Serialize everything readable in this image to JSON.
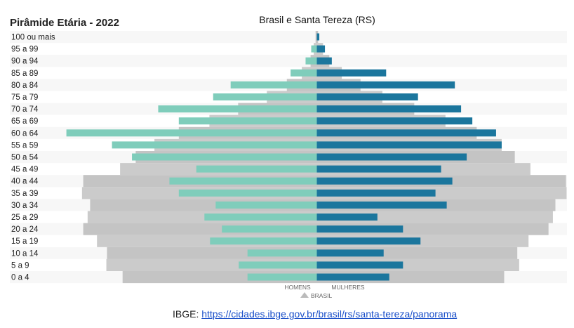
{
  "chart_data": {
    "type": "bar",
    "orientation": "horizontal-pyramid",
    "title": "Pirâmide Etária - 2022",
    "subtitle": "Brasil e Santa Tereza (RS)",
    "unit": "% of population (estimated; no axis printed)",
    "categories": [
      "100 ou mais",
      "95 a 99",
      "90 a 94",
      "85 a 89",
      "80 a 84",
      "75 a 79",
      "70 a 74",
      "65 a 69",
      "60 a 64",
      "55 a 59",
      "50 a 54",
      "45 a 49",
      "40 a 44",
      "35 a 39",
      "30 a 34",
      "25 a 29",
      "20 a 24",
      "15 a 19",
      "10 a 14",
      "5 a 9",
      "0 a 4"
    ],
    "series": [
      {
        "name": "HOMENS",
        "side": "left",
        "color": "#7fcdbb",
        "values": [
          0.0,
          0.09,
          0.18,
          0.42,
          1.38,
          1.66,
          2.54,
          2.21,
          4.01,
          3.28,
          2.96,
          1.93,
          2.36,
          2.21,
          1.62,
          1.8,
          1.52,
          1.71,
          1.11,
          1.25,
          1.11
        ]
      },
      {
        "name": "MULHERES",
        "side": "right",
        "color": "#1b769d",
        "values": [
          0.04,
          0.13,
          0.24,
          1.11,
          2.21,
          1.62,
          2.31,
          2.49,
          2.87,
          2.96,
          2.4,
          1.99,
          2.17,
          1.9,
          2.08,
          0.97,
          1.38,
          1.66,
          1.07,
          1.38,
          1.16
        ]
      },
      {
        "name": "BRASIL",
        "role": "reference",
        "color": "#c8c8c8",
        "men": [
          0.02,
          0.05,
          0.1,
          0.24,
          0.48,
          0.8,
          1.26,
          1.72,
          2.21,
          2.6,
          2.9,
          3.15,
          3.74,
          3.76,
          3.63,
          3.67,
          3.74,
          3.52,
          3.36,
          3.37,
          3.11
        ],
        "women": [
          0.02,
          0.1,
          0.2,
          0.4,
          0.7,
          1.05,
          1.56,
          2.06,
          2.56,
          2.96,
          3.17,
          3.42,
          3.99,
          4.0,
          3.82,
          3.78,
          3.71,
          3.39,
          3.21,
          3.24,
          3.0
        ]
      }
    ],
    "legend": {
      "men_label": "HOMENS",
      "women_label": "MULHERES",
      "reference_label": "BRASIL",
      "placement": "bottom-center"
    },
    "grid": false
  },
  "source": {
    "prefix": "IBGE: ",
    "link": "https://cidades.ibge.gov.br/brasil/rs/santa-tereza/panorama"
  }
}
